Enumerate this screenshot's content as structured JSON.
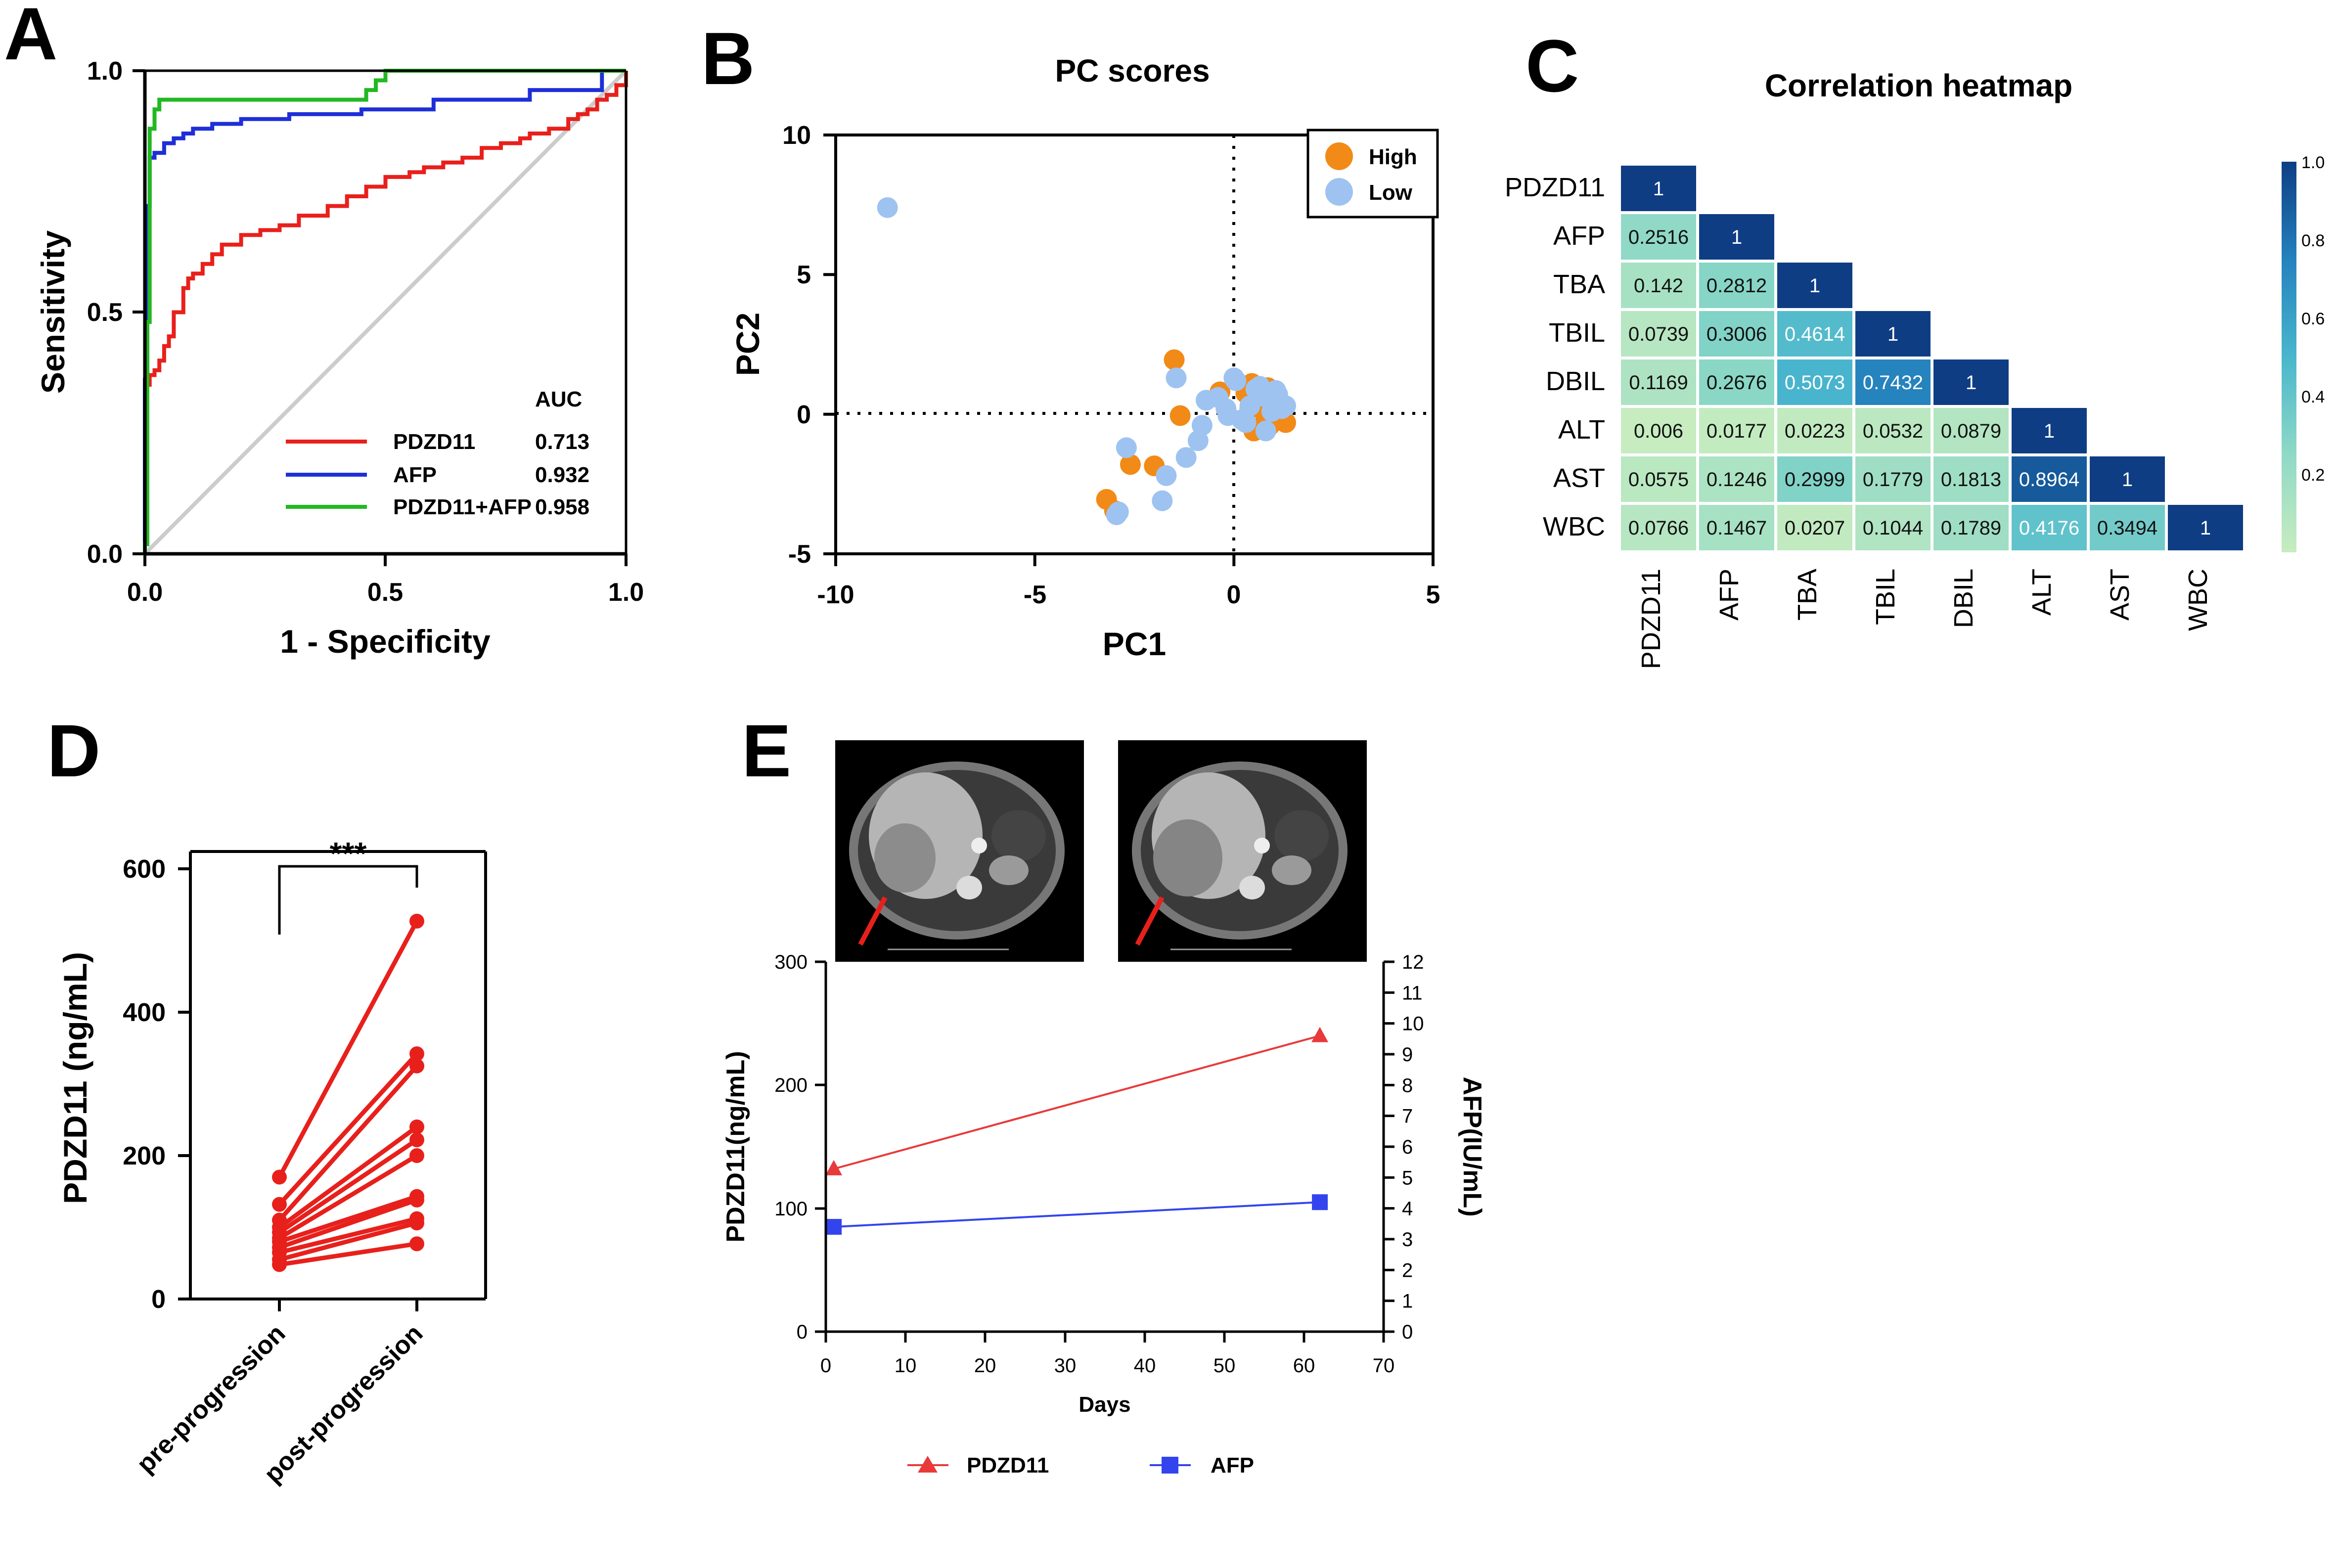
{
  "colors": {
    "pdzd11": "#e8201c",
    "afp": "#1e2fd8",
    "combined": "#22b822",
    "high": "#f28a17",
    "low": "#9ec3f0",
    "e_pdzd11": "#e83a3a",
    "e_afp": "#3344ee",
    "diag": "#cccccc"
  },
  "panel_labels": {
    "a": "A",
    "b": "B",
    "c": "C",
    "d": "D",
    "e": "E"
  },
  "chart_data": [
    {
      "panel": "A",
      "type": "line",
      "title": "",
      "xlabel": "1 - Specificity",
      "ylabel": "Sensitivity",
      "xlim": [
        0,
        1
      ],
      "ylim": [
        0,
        1
      ],
      "xticks": [
        "0.0",
        "0.5",
        "1.0"
      ],
      "yticks": [
        "0.0",
        "0.5",
        "1.0"
      ],
      "legend_header": "AUC",
      "series": [
        {
          "name": "PDZD11",
          "auc": "0.713",
          "color_key": "pdzd11",
          "x": [
            0,
            0,
            0.01,
            0.01,
            0.02,
            0.02,
            0.03,
            0.03,
            0.04,
            0.04,
            0.05,
            0.05,
            0.06,
            0.06,
            0.08,
            0.08,
            0.09,
            0.09,
            0.1,
            0.1,
            0.12,
            0.12,
            0.14,
            0.14,
            0.16,
            0.16,
            0.2,
            0.2,
            0.24,
            0.24,
            0.28,
            0.28,
            0.32,
            0.32,
            0.38,
            0.38,
            0.42,
            0.42,
            0.46,
            0.46,
            0.5,
            0.5,
            0.55,
            0.55,
            0.58,
            0.58,
            0.62,
            0.62,
            0.66,
            0.66,
            0.7,
            0.7,
            0.74,
            0.74,
            0.78,
            0.78,
            0.8,
            0.8,
            0.84,
            0.84,
            0.88,
            0.88,
            0.9,
            0.9,
            0.92,
            0.92,
            0.94,
            0.94,
            0.96,
            0.96,
            0.98,
            0.98,
            1,
            1
          ],
          "y": [
            0,
            0.35,
            0.35,
            0.37,
            0.37,
            0.38,
            0.38,
            0.4,
            0.4,
            0.43,
            0.43,
            0.45,
            0.45,
            0.5,
            0.5,
            0.55,
            0.55,
            0.57,
            0.57,
            0.58,
            0.58,
            0.6,
            0.6,
            0.62,
            0.62,
            0.64,
            0.64,
            0.66,
            0.66,
            0.67,
            0.67,
            0.68,
            0.68,
            0.7,
            0.7,
            0.72,
            0.72,
            0.74,
            0.74,
            0.76,
            0.76,
            0.78,
            0.78,
            0.79,
            0.79,
            0.8,
            0.8,
            0.81,
            0.81,
            0.82,
            0.82,
            0.84,
            0.84,
            0.85,
            0.85,
            0.86,
            0.86,
            0.87,
            0.87,
            0.88,
            0.88,
            0.9,
            0.9,
            0.91,
            0.91,
            0.92,
            0.92,
            0.94,
            0.94,
            0.95,
            0.95,
            0.97,
            0.97,
            1
          ]
        },
        {
          "name": "AFP",
          "auc": "0.932",
          "color_key": "afp",
          "x": [
            0,
            0,
            0.005,
            0.005,
            0.01,
            0.01,
            0.02,
            0.02,
            0.04,
            0.04,
            0.06,
            0.06,
            0.08,
            0.08,
            0.1,
            0.1,
            0.14,
            0.14,
            0.2,
            0.2,
            0.3,
            0.3,
            0.45,
            0.45,
            0.6,
            0.6,
            0.8,
            0.8,
            0.95,
            0.95,
            1
          ],
          "y": [
            0,
            0.36,
            0.36,
            0.72,
            0.72,
            0.82,
            0.82,
            0.83,
            0.83,
            0.85,
            0.85,
            0.86,
            0.86,
            0.87,
            0.87,
            0.88,
            0.88,
            0.89,
            0.89,
            0.9,
            0.9,
            0.91,
            0.91,
            0.92,
            0.92,
            0.94,
            0.94,
            0.96,
            0.96,
            1,
            1
          ]
        },
        {
          "name": "PDZD11+AFP",
          "auc": "0.958",
          "color_key": "combined",
          "x": [
            0,
            0,
            0.005,
            0.005,
            0.01,
            0.01,
            0.02,
            0.02,
            0.03,
            0.03,
            0.46,
            0.46,
            0.48,
            0.48,
            0.5,
            0.5,
            1
          ],
          "y": [
            0,
            0.02,
            0.02,
            0.48,
            0.48,
            0.88,
            0.88,
            0.92,
            0.92,
            0.94,
            0.94,
            0.96,
            0.96,
            0.98,
            0.98,
            1,
            1
          ]
        }
      ]
    },
    {
      "panel": "B",
      "type": "scatter",
      "title": "PC scores",
      "xlabel": "PC1",
      "ylabel": "PC2",
      "xlim": [
        -10,
        5
      ],
      "ylim": [
        -5,
        10
      ],
      "xticks": [
        "-10",
        "-5",
        "0",
        "5"
      ],
      "yticks": [
        "-5",
        "0",
        "5",
        "10"
      ],
      "series": [
        {
          "name": "High",
          "color_key": "high",
          "x": [
            -3.2,
            -3.0,
            -2.6,
            -2.0,
            -1.5,
            -1.35,
            -0.35,
            0.3,
            0.45,
            0.6,
            0.7,
            0.85,
            1.0,
            1.2,
            1.3,
            0.5,
            0.8,
            1.1,
            0.9,
            0.4
          ],
          "y": [
            -3.05,
            -3.45,
            -1.8,
            -1.85,
            1.95,
            -0.05,
            0.8,
            0.75,
            1.1,
            0.4,
            -0.5,
            0.95,
            0.3,
            -0.1,
            -0.3,
            -0.6,
            -0.2,
            0.5,
            -0.4,
            0.2
          ]
        },
        {
          "name": "Low",
          "color_key": "low",
          "x": [
            -8.7,
            -2.9,
            -2.95,
            -2.7,
            -1.8,
            -1.7,
            -1.45,
            -1.2,
            -0.9,
            -0.8,
            -0.7,
            -0.4,
            -0.2,
            0.0,
            0.05,
            0.2,
            0.4,
            0.55,
            0.7,
            0.8,
            0.95,
            1.05,
            1.2,
            1.3,
            1.1,
            0.65,
            -0.15,
            0.3
          ],
          "y": [
            7.4,
            -3.5,
            -3.6,
            -1.2,
            -3.1,
            -2.2,
            1.3,
            -1.55,
            -0.95,
            -0.4,
            0.5,
            0.6,
            0.2,
            1.3,
            1.2,
            -0.2,
            0.3,
            0.9,
            0.65,
            -0.6,
            0.1,
            0.85,
            0.2,
            0.3,
            0.7,
            1.0,
            -0.05,
            -0.3
          ]
        }
      ]
    },
    {
      "panel": "C",
      "type": "heatmap",
      "title": "Correlation heatmap",
      "labels": [
        "PDZD11",
        "AFP",
        "TBA",
        "TBIL",
        "DBIL",
        "ALT",
        "AST",
        "WBC"
      ],
      "values": [
        [
          "1"
        ],
        [
          "0.2516",
          "1"
        ],
        [
          "0.142",
          "0.2812",
          "1"
        ],
        [
          "0.0739",
          "0.3006",
          "0.4614",
          "1"
        ],
        [
          "0.1169",
          "0.2676",
          "0.5073",
          "0.7432",
          "1"
        ],
        [
          "0.006",
          "0.0177",
          "0.0223",
          "0.0532",
          "0.0879",
          "1"
        ],
        [
          "0.0575",
          "0.1246",
          "0.2999",
          "0.1779",
          "0.1813",
          "0.8964",
          "1"
        ],
        [
          "0.0766",
          "0.1467",
          "0.0207",
          "0.1044",
          "0.1789",
          "0.4176",
          "0.3494",
          "1"
        ]
      ],
      "colorbar_ticks": [
        "1.0",
        "0.8",
        "0.6",
        "0.4",
        "0.2"
      ],
      "colorbar_range": [
        0.0,
        1.0
      ]
    },
    {
      "panel": "D",
      "type": "line",
      "title": "",
      "xlabel": "",
      "ylabel": "PDZD11 (ng/mL)",
      "ylim": [
        0,
        620
      ],
      "yticks": [
        "0",
        "200",
        "400",
        "600"
      ],
      "categories": [
        "pre-progression",
        "post-progression"
      ],
      "significance": "***",
      "pairs": [
        [
          170,
          527
        ],
        [
          132,
          342
        ],
        [
          110,
          325
        ],
        [
          100,
          240
        ],
        [
          93,
          222
        ],
        [
          85,
          200
        ],
        [
          80,
          143
        ],
        [
          72,
          138
        ],
        [
          65,
          112
        ],
        [
          55,
          106
        ],
        [
          48,
          77
        ]
      ]
    },
    {
      "panel": "E",
      "type": "line",
      "title": "",
      "xlabel": "Days",
      "ylabel_left": "PDZD11(ng/mL)",
      "ylabel_right": "AFP(IU/mL)",
      "xlim": [
        0,
        70
      ],
      "ylim_left": [
        0,
        300
      ],
      "ylim_right": [
        0,
        12
      ],
      "xticks": [
        "0",
        "10",
        "20",
        "30",
        "40",
        "50",
        "60",
        "70"
      ],
      "yticks_left": [
        "0",
        "100",
        "200",
        "300"
      ],
      "yticks_right": [
        "0",
        "1",
        "2",
        "3",
        "4",
        "5",
        "6",
        "7",
        "8",
        "9",
        "10",
        "11",
        "12"
      ],
      "series": [
        {
          "name": "PDZD11",
          "axis": "left",
          "marker": "triangle",
          "color_key": "e_pdzd11",
          "x": [
            1,
            62
          ],
          "y": [
            132,
            240
          ]
        },
        {
          "name": "AFP",
          "axis": "right",
          "marker": "square",
          "color_key": "e_afp",
          "x": [
            1,
            62
          ],
          "y": [
            3.4,
            4.2
          ]
        }
      ]
    }
  ]
}
